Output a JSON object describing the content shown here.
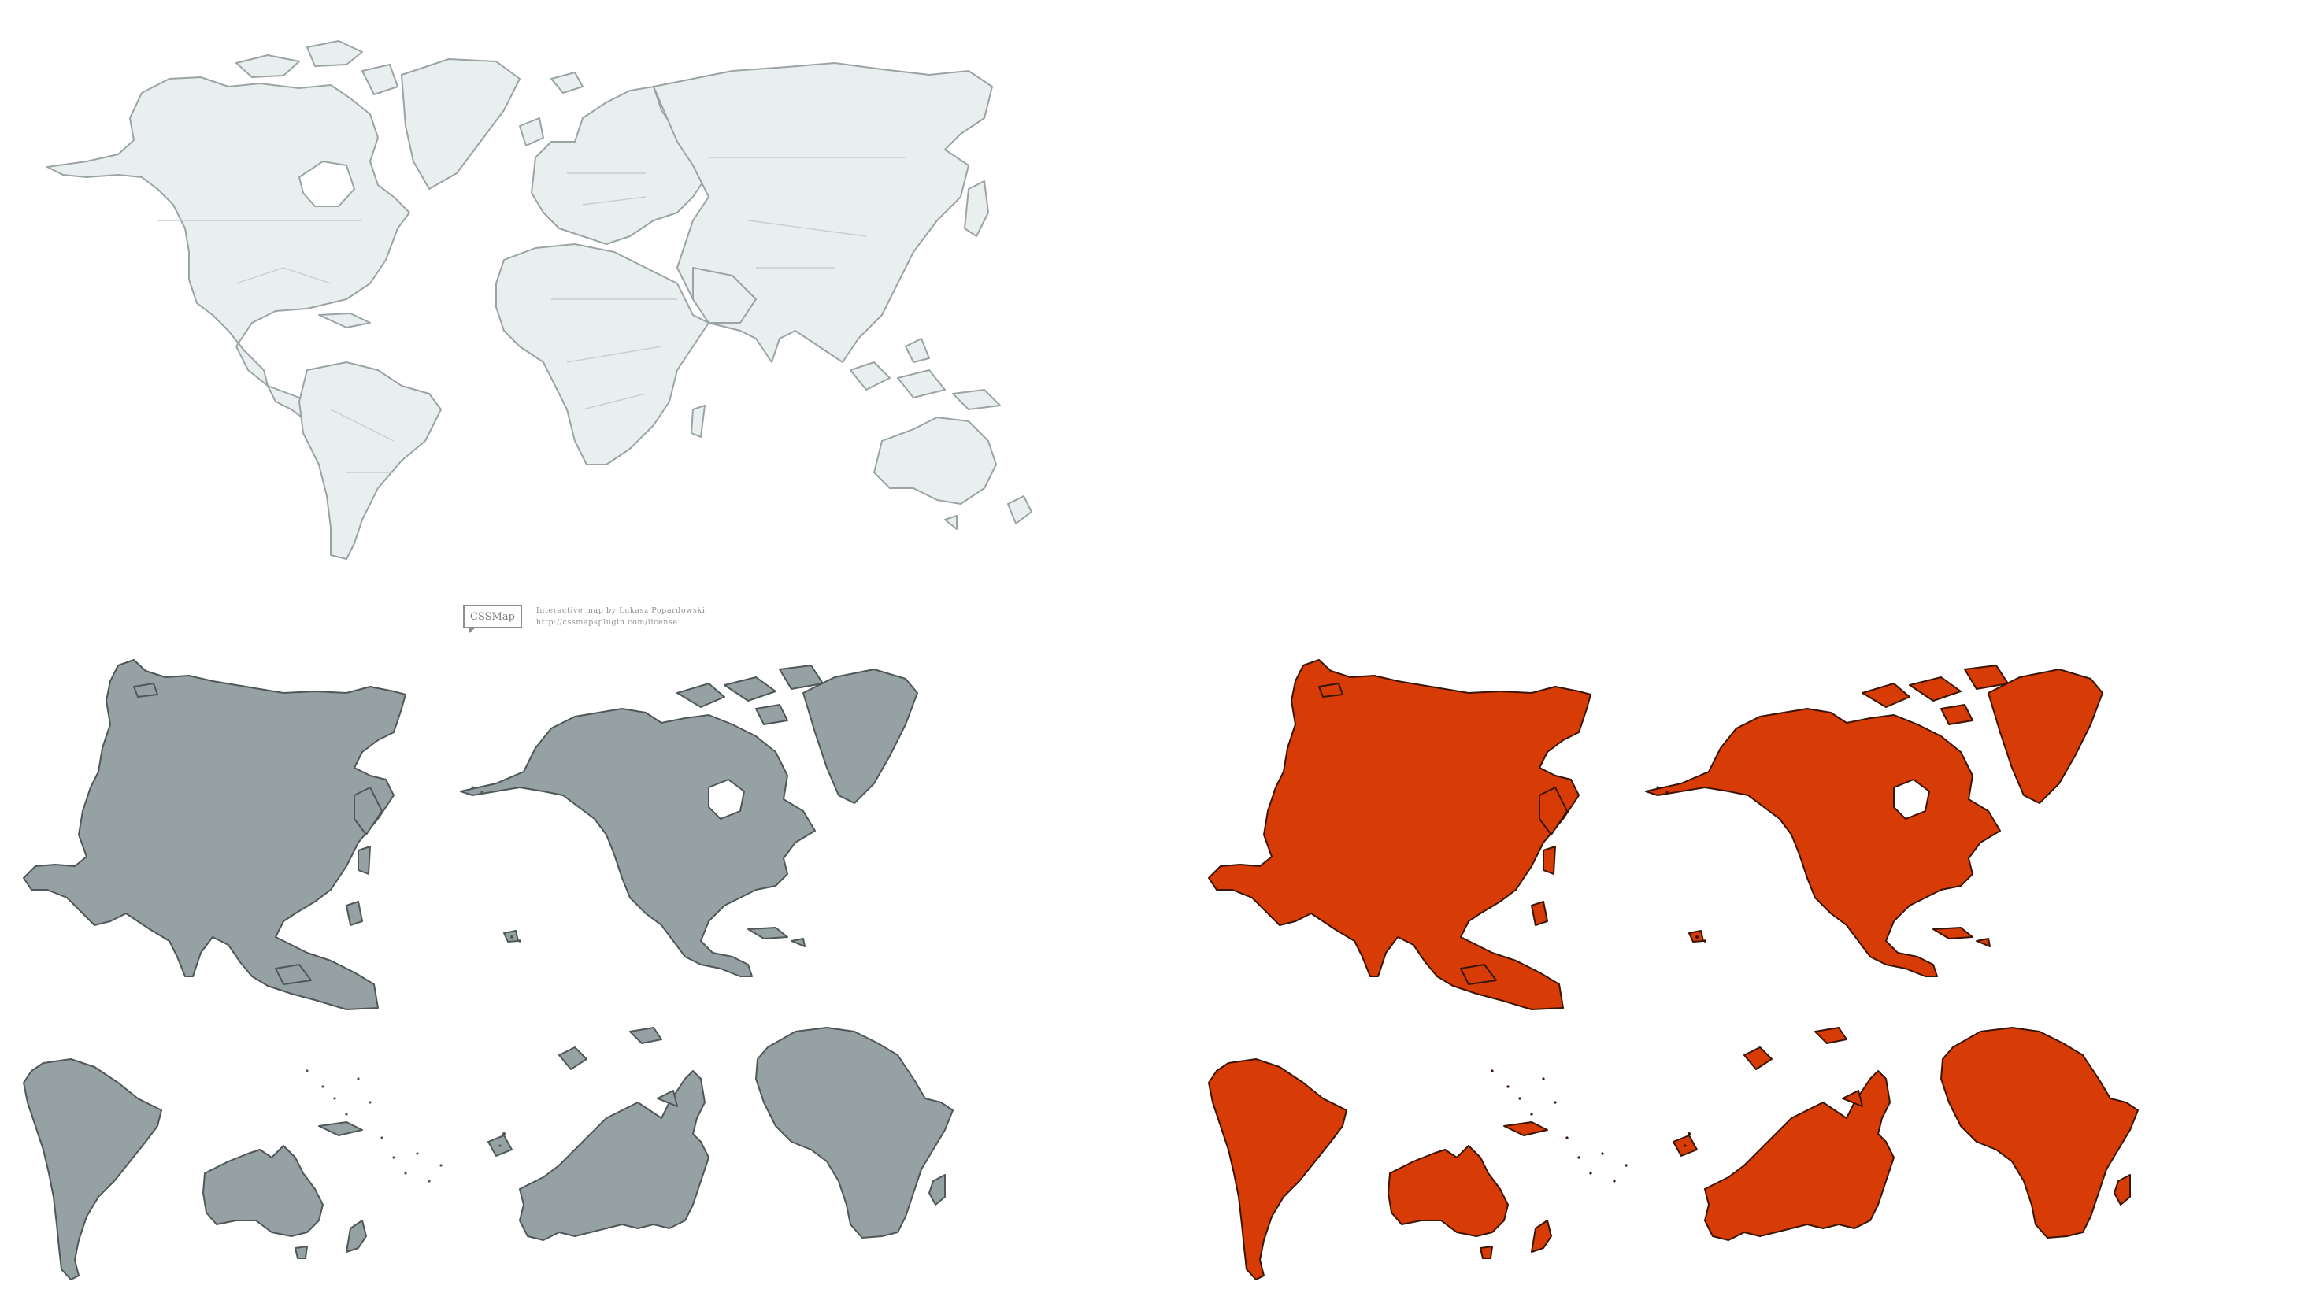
{
  "credit": {
    "logo": "CSSMap",
    "author_line": "Interactive map by Łukasz Popardowski",
    "license_line": "http://cssmapsplugin.com/license"
  },
  "colors": {
    "background": "#ffffff",
    "world_fill": "#e9eeef",
    "world_stroke": "#9aa4a5",
    "continent_gray": "#95a1a2",
    "continent_orange": "#d83c06"
  },
  "maps": {
    "world": "world-map",
    "gray_set": [
      "asia",
      "north-america",
      "south-america",
      "australia-oceania",
      "europe",
      "africa"
    ],
    "orange_set": [
      "asia",
      "north-america",
      "south-america",
      "australia-oceania",
      "europe",
      "africa"
    ]
  }
}
